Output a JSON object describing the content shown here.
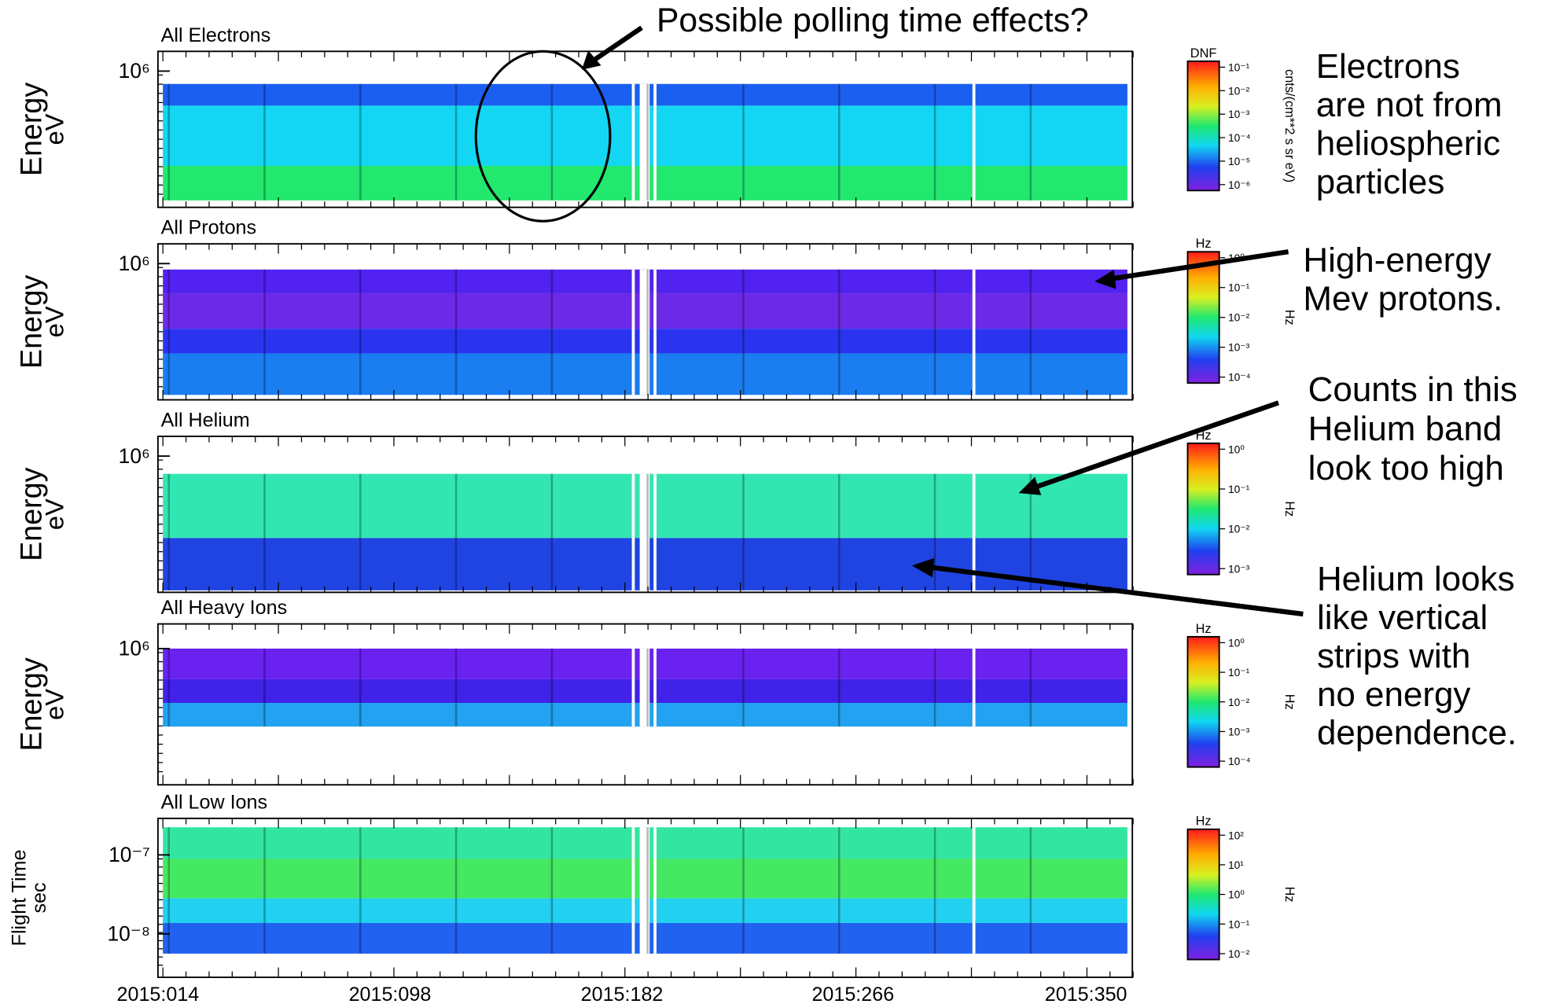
{
  "panels": [
    {
      "title": "All Electrons",
      "y_label": [
        "Energy",
        "eV"
      ],
      "y_ticks": [
        "10⁶"
      ],
      "bands": [
        "#1a5ff0",
        "#12d6f2",
        "#22e86e"
      ],
      "colorbar": {
        "label": "DNF",
        "ticks": [
          "10⁻¹",
          "10⁻²",
          "10⁻³",
          "10⁻⁴",
          "10⁻⁵",
          "10⁻⁶"
        ],
        "unit": "cnts/(cm**2 s sr eV)"
      }
    },
    {
      "title": "All Protons",
      "y_label": [
        "Energy",
        "eV"
      ],
      "y_ticks": [
        "10⁶"
      ],
      "bands": [
        "#5222f0",
        "#6c2ae8",
        "#2a34f0",
        "#1a7ef0"
      ],
      "colorbar": {
        "label": "Hz",
        "ticks": [
          "10⁰",
          "10⁻¹",
          "10⁻²",
          "10⁻³",
          "10⁻⁴"
        ],
        "unit": "Hz"
      }
    },
    {
      "title": "All Helium",
      "y_label": [
        "Energy",
        "eV"
      ],
      "y_ticks": [
        "10⁶"
      ],
      "bands": [
        "#32e6b2",
        "#2044e2"
      ],
      "colorbar": {
        "label": "Hz",
        "ticks": [
          "10⁰",
          "10⁻¹",
          "10⁻²",
          "10⁻³"
        ],
        "unit": "Hz"
      }
    },
    {
      "title": "All Heavy Ions",
      "y_label": [
        "Energy",
        "eV"
      ],
      "y_ticks": [
        "10⁶"
      ],
      "bands": [
        "#6a22f0",
        "#4022e8",
        "#22a2f0"
      ],
      "colorbar": {
        "label": "Hz",
        "ticks": [
          "10⁰",
          "10⁻¹",
          "10⁻²",
          "10⁻³",
          "10⁻⁴"
        ],
        "unit": "Hz"
      }
    },
    {
      "title": "All Low Ions",
      "y_label": [
        "Flight Time",
        "sec"
      ],
      "y_ticks": [
        "10⁻⁷",
        "10⁻⁸"
      ],
      "bands": [
        "#32e6a2",
        "#44e862",
        "#22d0f0",
        "#2262f0"
      ],
      "colorbar": {
        "label": "Hz",
        "ticks": [
          "10²",
          "10¹",
          "10⁰",
          "10⁻¹",
          "10⁻²"
        ],
        "unit": "Hz"
      }
    }
  ],
  "x_ticks": [
    "2015:014",
    "2015:098",
    "2015:182",
    "2015:266",
    "2015:350"
  ],
  "annotations": [
    {
      "lines": [
        "Possible polling time effects?"
      ]
    },
    {
      "lines": [
        "Electrons",
        "are not from",
        "heliospheric",
        "particles"
      ]
    },
    {
      "lines": [
        "High-energy",
        "Mev protons."
      ]
    },
    {
      "lines": [
        "Counts in this",
        "Helium band",
        "look too high"
      ]
    },
    {
      "lines": [
        "Helium looks",
        "like vertical",
        "strips with",
        "no energy",
        "dependence."
      ]
    }
  ]
}
